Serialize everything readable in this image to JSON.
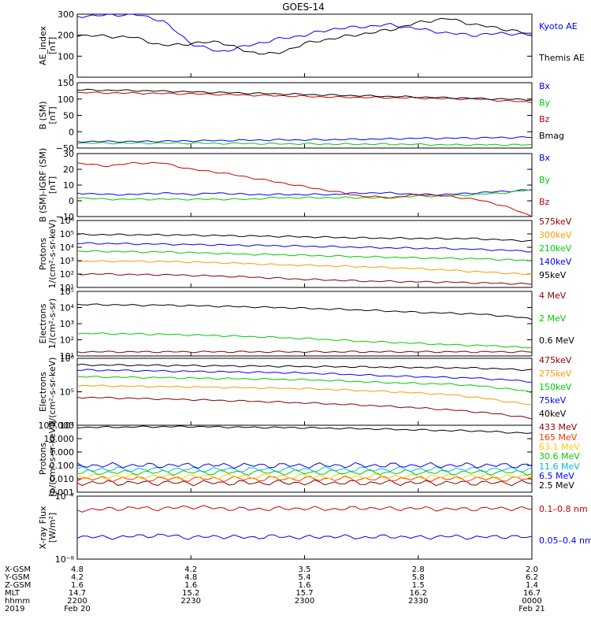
{
  "title": "GOES-14",
  "panels": [
    {
      "ylabel": [
        "AE_index",
        "[nT]"
      ],
      "yticks": [
        "0",
        "100",
        "200",
        "300"
      ],
      "legend": [
        {
          "label": "Kyoto AE",
          "color": "#0000ff"
        },
        {
          "label": "Themis AE",
          "color": "#000000"
        }
      ]
    },
    {
      "ylabel": [
        "B (SM)",
        "[nT]"
      ],
      "yticks": [
        "−50",
        "0",
        "50",
        "100",
        "150"
      ],
      "legend": [
        {
          "label": "Bx",
          "color": "#0000ff"
        },
        {
          "label": "By",
          "color": "#00cc00"
        },
        {
          "label": "Bz",
          "color": "#cc0000"
        },
        {
          "label": "Bmag",
          "color": "#000000"
        }
      ]
    },
    {
      "ylabel": [
        "B (SM)-IGRF (SM)",
        "[nT]"
      ],
      "yticks": [
        "−10",
        "0",
        "10",
        "20",
        "30"
      ],
      "legend": [
        {
          "label": "Bx",
          "color": "#0000ff"
        },
        {
          "label": "By",
          "color": "#00cc00"
        },
        {
          "label": "Bz",
          "color": "#cc0000"
        }
      ]
    },
    {
      "ylabel": [
        "Protons",
        "1/(cm²-s-sr-keV)"
      ],
      "yticks": [
        "10¹",
        "10²",
        "10³",
        "10⁴",
        "10⁵",
        "10⁶"
      ],
      "legend": [
        {
          "label": "575keV",
          "color": "#8b0000"
        },
        {
          "label": "300keV",
          "color": "#ff9900"
        },
        {
          "label": "210keV",
          "color": "#00cc00"
        },
        {
          "label": "140keV",
          "color": "#0000ff"
        },
        {
          "label": "95keV",
          "color": "#000000"
        }
      ]
    },
    {
      "ylabel": [
        "Electrons",
        "1/(cm²-s-sr)"
      ],
      "yticks": [
        "10¹",
        "10²",
        "10³",
        "10⁴",
        "10⁵"
      ],
      "legend": [
        {
          "label": "4 MeV",
          "color": "#8b0000"
        },
        {
          "label": "2 MeV",
          "color": "#00cc00"
        },
        {
          "label": "0.6 MeV",
          "color": "#000000"
        }
      ]
    },
    {
      "ylabel": [
        "Electrons",
        "1/(cm²-s-sr-keV)"
      ],
      "yticks": [
        "10⁴",
        "10⁵",
        "10⁶"
      ],
      "legend": [
        {
          "label": "475keV",
          "color": "#8b0000"
        },
        {
          "label": "275keV",
          "color": "#ff9900"
        },
        {
          "label": "150keV",
          "color": "#00cc00"
        },
        {
          "label": "75keV",
          "color": "#0000ff"
        },
        {
          "label": "40keV",
          "color": "#000000"
        }
      ]
    },
    {
      "ylabel": [
        "Protons",
        "[p/(cm²-s-sr-keV)]"
      ],
      "yticks": [
        "0.001",
        "0.010",
        "0.100",
        "1.000",
        "10.000",
        "100.000"
      ],
      "legend": [
        {
          "label": "433 MeV",
          "color": "#8b0000"
        },
        {
          "label": "165 MeV",
          "color": "#ff3300"
        },
        {
          "label": "63.1 MeV",
          "color": "#ffcc00"
        },
        {
          "label": "30.6 MeV",
          "color": "#00cc00"
        },
        {
          "label": "11.6 MeV",
          "color": "#00bbdd"
        },
        {
          "label": "6.5 MeV",
          "color": "#0000ff"
        },
        {
          "label": "2.5 MeV",
          "color": "#000000"
        }
      ]
    },
    {
      "ylabel": [
        "X-ray Flux",
        "[W/m²]"
      ],
      "yticks": [
        "10⁻⁸",
        "10⁻⁷"
      ],
      "legend": [
        {
          "label": "0.1–0.8 nm",
          "color": "#cc0000"
        },
        {
          "label": "0.05–0.4 nm",
          "color": "#0000ff"
        }
      ]
    }
  ],
  "xaxis": {
    "row_labels": [
      "X-GSM",
      "Y-GSM",
      "Z-GSM",
      "MLT",
      "hhmm",
      "2019"
    ],
    "columns": [
      [
        "4.8",
        "4.2",
        "1.6",
        "14.7",
        "2200",
        "Feb 20"
      ],
      [
        "4.2",
        "4.8",
        "1.6",
        "15.2",
        "2230",
        ""
      ],
      [
        "3.5",
        "5.4",
        "1.6",
        "15.7",
        "2300",
        ""
      ],
      [
        "2.8",
        "5.8",
        "1.5",
        "16.2",
        "2330",
        ""
      ],
      [
        "2.0",
        "6.2",
        "1.4",
        "16.7",
        "0000",
        "Feb 21"
      ]
    ]
  },
  "chart_data": {
    "type": "line",
    "title": "GOES-14",
    "x_ticks": [
      "2200",
      "2230",
      "2300",
      "2330",
      "0000"
    ],
    "panels": [
      {
        "ylabel": "AE_index [nT]",
        "scale": "linear",
        "ylim": [
          0,
          300
        ],
        "series": [
          {
            "name": "Kyoto AE",
            "values": [
              290,
              295,
              300,
              270,
              160,
              120,
              150,
              180,
              200,
              230,
              240,
              250,
              230,
              210,
              200,
              210,
              200
            ]
          },
          {
            "name": "Themis AE",
            "values": [
              200,
              195,
              190,
              150,
              160,
              170,
              120,
              110,
              160,
              185,
              205,
              225,
              260,
              280,
              250,
              230,
              205
            ]
          }
        ]
      },
      {
        "ylabel": "B (SM) [nT]",
        "scale": "linear",
        "ylim": [
          -50,
          150
        ],
        "series": [
          {
            "name": "Bx",
            "values": [
              -30,
              -30,
              -30,
              -29,
              -28,
              -27,
              -26,
              -25,
              -25,
              -24,
              -23,
              -22,
              -20,
              -20,
              -19,
              -18,
              -17
            ]
          },
          {
            "name": "By",
            "values": [
              -35,
              -35,
              -35,
              -35,
              -35,
              -36,
              -36,
              -37,
              -37,
              -38,
              -38,
              -38,
              -39,
              -40,
              -40,
              -40,
              -40
            ]
          },
          {
            "name": "Bz",
            "values": [
              120,
              119,
              118,
              117,
              116,
              114,
              112,
              110,
              108,
              106,
              105,
              104,
              103,
              101,
              100,
              95,
              90
            ]
          },
          {
            "name": "Bmag",
            "values": [
              128,
              127,
              126,
              124,
              122,
              120,
              118,
              116,
              114,
              112,
              110,
              108,
              106,
              104,
              102,
              100,
              98
            ]
          }
        ]
      },
      {
        "ylabel": "B (SM)-IGRF (SM) [nT]",
        "scale": "linear",
        "ylim": [
          -10,
          30
        ],
        "series": [
          {
            "name": "Bx",
            "values": [
              5,
              4,
              4,
              5,
              4,
              5,
              4,
              4,
              4,
              4,
              5,
              5,
              4,
              4,
              5,
              6,
              7
            ]
          },
          {
            "name": "By",
            "values": [
              2,
              1,
              1,
              1,
              1,
              1,
              1,
              2,
              2,
              2,
              2,
              2,
              3,
              3,
              4,
              5,
              7
            ]
          },
          {
            "name": "Bz",
            "values": [
              24,
              22,
              24,
              24,
              20,
              18,
              15,
              12,
              9,
              6,
              3,
              2,
              4,
              3,
              1,
              -3,
              -10
            ]
          }
        ]
      },
      {
        "ylabel": "Protons 1/(cm²-s-sr-keV)",
        "scale": "log",
        "ylim": [
          10,
          1000000
        ],
        "series": [
          {
            "name": "575keV",
            "values": [
              100,
              100,
              90,
              90,
              80,
              70,
              60,
              50,
              40,
              35,
              30,
              28,
              26,
              25,
              22,
              20,
              18
            ]
          },
          {
            "name": "300keV",
            "values": [
              900,
              900,
              900,
              850,
              800,
              700,
              600,
              500,
              450,
              400,
              350,
              300,
              250,
              200,
              150,
              120,
              90
            ]
          },
          {
            "name": "210keV",
            "values": [
              5000,
              5000,
              4500,
              4500,
              4000,
              3500,
              3000,
              2800,
              2500,
              2200,
              2000,
              1800,
              1600,
              1500,
              1400,
              1200,
              1000
            ]
          },
          {
            "name": "140keV",
            "values": [
              20000,
              19000,
              18000,
              17000,
              16000,
              15000,
              14000,
              13000,
              12000,
              11000,
              10000,
              9000,
              8500,
              8000,
              7000,
              6000,
              5000
            ]
          },
          {
            "name": "95keV",
            "values": [
              90000,
              88000,
              86000,
              84000,
              80000,
              75000,
              70000,
              65000,
              60000,
              55000,
              50000,
              48000,
              46000,
              45000,
              44000,
              35000,
              30000
            ]
          }
        ]
      },
      {
        "ylabel": "Electrons 1/(cm²-s-sr)",
        "scale": "log",
        "ylim": [
          10,
          100000
        ],
        "series": [
          {
            "name": "4 MeV",
            "values": [
              18,
              18,
              18,
              18,
              18,
              18,
              18,
              18,
              18,
              18,
              18,
              18,
              18,
              18,
              18,
              18,
              18
            ]
          },
          {
            "name": "2 MeV",
            "values": [
              250,
              240,
              230,
              220,
              200,
              180,
              160,
              140,
              120,
              100,
              80,
              70,
              60,
              50,
              45,
              40,
              30
            ]
          },
          {
            "name": "0.6 MeV",
            "values": [
              15000,
              15000,
              14000,
              14000,
              13000,
              12000,
              11000,
              10000,
              9000,
              8000,
              7000,
              6000,
              5000,
              4500,
              4000,
              3000,
              2000
            ]
          }
        ]
      },
      {
        "ylabel": "Electrons 1/(cm²-s-sr-keV)",
        "scale": "log",
        "ylim": [
          1000,
          1000000
        ],
        "series": [
          {
            "name": "475keV",
            "values": [
              18000,
              17000,
              16000,
              15000,
              14000,
              13000,
              12000,
              11000,
              10000,
              9000,
              8000,
              7000,
              6000,
              5000,
              4000,
              3000,
              2000
            ]
          },
          {
            "name": "275keV",
            "values": [
              60000,
              58000,
              56000,
              54000,
              52000,
              50000,
              48000,
              46000,
              44000,
              40000,
              36000,
              32000,
              28000,
              24000,
              18000,
              12000,
              8000
            ]
          },
          {
            "name": "150keV",
            "values": [
              150000,
              145000,
              140000,
              135000,
              130000,
              125000,
              120000,
              115000,
              110000,
              100000,
              90000,
              80000,
              75000,
              70000,
              60000,
              45000,
              30000
            ]
          },
          {
            "name": "75keV",
            "values": [
              300000,
              290000,
              280000,
              270000,
              260000,
              250000,
              240000,
              230000,
              220000,
              200000,
              180000,
              160000,
              150000,
              140000,
              130000,
              110000,
              90000
            ]
          },
          {
            "name": "40keV",
            "values": [
              500000,
              500000,
              490000,
              480000,
              470000,
              460000,
              450000,
              440000,
              430000,
              420000,
              410000,
              400000,
              390000,
              380000,
              370000,
              330000,
              300000
            ]
          }
        ]
      },
      {
        "ylabel": "Protons [p/(cm²-s-sr-keV)]",
        "scale": "log",
        "ylim": [
          0.001,
          100
        ],
        "series": [
          {
            "name": "433 MeV",
            "values": [
              0.005,
              0.005,
              0.005,
              0.005,
              0.005,
              0.005,
              0.005,
              0.005,
              0.005,
              0.005,
              0.005,
              0.005,
              0.005,
              0.005,
              0.005,
              0.005,
              0.005
            ]
          },
          {
            "name": "165 MeV",
            "values": [
              0.01,
              0.01,
              0.01,
              0.01,
              0.01,
              0.01,
              0.01,
              0.01,
              0.01,
              0.01,
              0.01,
              0.01,
              0.01,
              0.01,
              0.01,
              0.01,
              0.01
            ]
          },
          {
            "name": "63.1 MeV",
            "values": [
              0.015,
              0.015,
              0.015,
              0.015,
              0.015,
              0.015,
              0.015,
              0.015,
              0.015,
              0.015,
              0.015,
              0.015,
              0.015,
              0.015,
              0.015,
              0.015,
              0.015
            ]
          },
          {
            "name": "30.6 MeV",
            "values": [
              0.03,
              0.03,
              0.03,
              0.03,
              0.03,
              0.03,
              0.03,
              0.03,
              0.03,
              0.03,
              0.03,
              0.03,
              0.03,
              0.03,
              0.03,
              0.03,
              0.03
            ]
          },
          {
            "name": "11.6 MeV",
            "values": [
              0.05,
              0.05,
              0.05,
              0.05,
              0.05,
              0.05,
              0.05,
              0.05,
              0.05,
              0.05,
              0.05,
              0.05,
              0.05,
              0.05,
              0.05,
              0.05,
              0.05
            ]
          },
          {
            "name": "6.5 MeV",
            "values": [
              0.1,
              0.1,
              0.1,
              0.1,
              0.1,
              0.1,
              0.1,
              0.1,
              0.1,
              0.1,
              0.1,
              0.1,
              0.1,
              0.1,
              0.1,
              0.1,
              0.1
            ]
          },
          {
            "name": "2.5 MeV",
            "values": [
              70,
              72,
              75,
              78,
              80,
              75,
              70,
              68,
              65,
              60,
              55,
              50,
              45,
              40,
              38,
              30,
              25
            ]
          }
        ]
      },
      {
        "ylabel": "X-ray Flux [W/m²]",
        "scale": "log",
        "ylim": [
          1e-08,
          1e-07
        ],
        "series": [
          {
            "name": "0.1–0.8 nm",
            "values": [
              6e-08,
              6.2e-08,
              6.5e-08,
              6.3e-08,
              6.8e-08,
              6.4e-08,
              6.2e-08,
              6.3e-08,
              6.4e-08,
              6.2e-08,
              6.5e-08,
              6.3e-08,
              6.4e-08,
              6.2e-08,
              6.3e-08,
              6.4e-08,
              6.3e-08
            ]
          },
          {
            "name": "0.05–0.4 nm",
            "values": [
              2.3e-08,
              2.2e-08,
              2.3e-08,
              2.4e-08,
              2.2e-08,
              2.3e-08,
              2.2e-08,
              2.3e-08,
              2.2e-08,
              2.3e-08,
              2.2e-08,
              2.3e-08,
              2.2e-08,
              2.3e-08,
              2.2e-08,
              2.3e-08,
              2.2e-08
            ]
          }
        ]
      }
    ]
  }
}
